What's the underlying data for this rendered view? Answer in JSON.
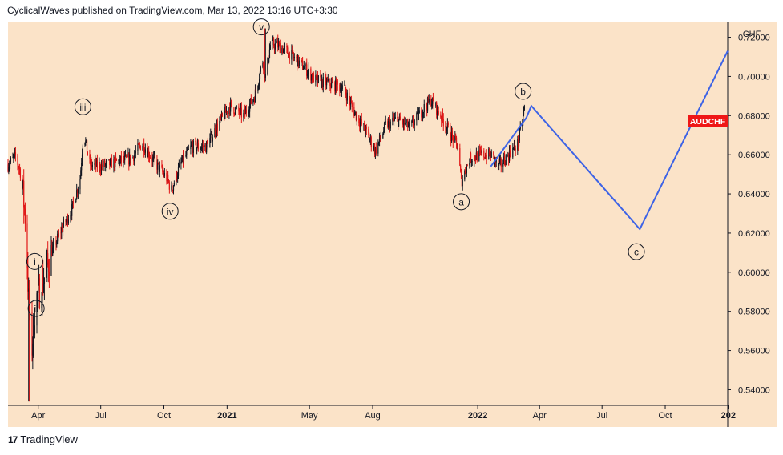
{
  "header": {
    "published": "CyclicalWaves published on TradingView.com, Mar 13, 2022 13:16 UTC+3:30"
  },
  "footer": {
    "logo_text": "TradingView",
    "logo_mark": "17"
  },
  "chart_data": {
    "type": "candlestick",
    "symbol": "AUDCHF",
    "currency": "CHF",
    "last_price_label": "AUDCHF",
    "colors": {
      "background": "#fbe3c8",
      "up": "#131722",
      "down": "#e01616",
      "projection": "#3d63e6",
      "label_bg": "#ef1717"
    },
    "y_axis": {
      "range": [
        0.532,
        0.728
      ],
      "ticks": [
        "0.54000",
        "0.56000",
        "0.58000",
        "0.60000",
        "0.62000",
        "0.64000",
        "0.66000",
        "0.68000",
        "0.70000",
        "0.72000"
      ]
    },
    "x_axis": {
      "range": [
        "2020-02-17",
        "2022-12-31"
      ],
      "ticks": [
        {
          "date": "2020-04-01",
          "label": "Apr",
          "bold": false
        },
        {
          "date": "2020-07-01",
          "label": "Jul",
          "bold": false
        },
        {
          "date": "2020-10-01",
          "label": "Oct",
          "bold": false
        },
        {
          "date": "2021-01-01",
          "label": "2021",
          "bold": true
        },
        {
          "date": "2021-05-01",
          "label": "May",
          "bold": false
        },
        {
          "date": "2021-08-01",
          "label": "Aug",
          "bold": false
        },
        {
          "date": "2022-01-01",
          "label": "2022",
          "bold": true
        },
        {
          "date": "2022-04-01",
          "label": "Apr",
          "bold": false
        },
        {
          "date": "2022-07-01",
          "label": "Jul",
          "bold": false
        },
        {
          "date": "2022-10-01",
          "label": "Oct",
          "bold": false
        },
        {
          "date": "2023-01-01",
          "label": "202",
          "bold": true
        }
      ]
    },
    "price_path": [
      [
        "2020-02-17",
        0.655
      ],
      [
        "2020-02-28",
        0.659
      ],
      [
        "2020-03-07",
        0.65
      ],
      [
        "2020-03-14",
        0.625
      ],
      [
        "2020-03-19",
        0.575
      ],
      [
        "2020-03-23",
        0.562
      ],
      [
        "2020-03-28",
        0.585
      ],
      [
        "2020-04-08",
        0.595
      ],
      [
        "2020-04-20",
        0.61
      ],
      [
        "2020-05-05",
        0.622
      ],
      [
        "2020-05-20",
        0.632
      ],
      [
        "2020-06-01",
        0.648
      ],
      [
        "2020-06-06",
        0.672
      ],
      [
        "2020-06-15",
        0.655
      ],
      [
        "2020-07-01",
        0.654
      ],
      [
        "2020-07-20",
        0.656
      ],
      [
        "2020-08-15",
        0.658
      ],
      [
        "2020-08-30",
        0.666
      ],
      [
        "2020-09-20",
        0.655
      ],
      [
        "2020-10-05",
        0.648
      ],
      [
        "2020-10-12",
        0.642
      ],
      [
        "2020-10-25",
        0.655
      ],
      [
        "2020-11-10",
        0.664
      ],
      [
        "2020-12-01",
        0.664
      ],
      [
        "2020-12-20",
        0.676
      ],
      [
        "2021-01-05",
        0.685
      ],
      [
        "2021-01-25",
        0.68
      ],
      [
        "2021-02-10",
        0.69
      ],
      [
        "2021-02-22",
        0.708
      ],
      [
        "2021-02-26",
        0.7
      ],
      [
        "2021-03-05",
        0.716
      ],
      [
        "2021-03-15",
        0.716
      ],
      [
        "2021-04-01",
        0.712
      ],
      [
        "2021-04-25",
        0.704
      ],
      [
        "2021-05-10",
        0.698
      ],
      [
        "2021-06-01",
        0.696
      ],
      [
        "2021-06-20",
        0.694
      ],
      [
        "2021-07-05",
        0.682
      ],
      [
        "2021-07-25",
        0.67
      ],
      [
        "2021-08-05",
        0.662
      ],
      [
        "2021-08-20",
        0.675
      ],
      [
        "2021-09-05",
        0.678
      ],
      [
        "2021-09-25",
        0.674
      ],
      [
        "2021-10-15",
        0.684
      ],
      [
        "2021-10-25",
        0.688
      ],
      [
        "2021-11-05",
        0.682
      ],
      [
        "2021-11-20",
        0.672
      ],
      [
        "2021-12-03",
        0.664
      ],
      [
        "2021-12-08",
        0.646
      ],
      [
        "2021-12-20",
        0.658
      ],
      [
        "2022-01-05",
        0.66
      ],
      [
        "2022-01-20",
        0.66
      ],
      [
        "2022-02-01",
        0.654
      ],
      [
        "2022-02-15",
        0.66
      ],
      [
        "2022-03-01",
        0.666
      ],
      [
        "2022-03-10",
        0.684
      ]
    ],
    "projection": [
      {
        "date": "2022-01-20",
        "y": 0.654
      },
      {
        "date": "2022-03-13",
        "y": 0.679
      },
      {
        "date": "2022-03-20",
        "y": 0.685
      },
      {
        "date": "2022-08-25",
        "y": 0.622
      },
      {
        "date": "2022-12-31",
        "y": 0.713
      }
    ],
    "wave_labels": [
      {
        "label": "i",
        "date": "2020-03-27",
        "y": 0.6055
      },
      {
        "label": "ii",
        "date": "2020-03-29",
        "y": 0.5815
      },
      {
        "label": "iii",
        "date": "2020-06-05",
        "y": 0.6845
      },
      {
        "label": "iv",
        "date": "2020-10-10",
        "y": 0.6311
      },
      {
        "label": "v",
        "date": "2021-02-20",
        "y": 0.7253
      },
      {
        "label": "a",
        "date": "2021-12-08",
        "y": 0.636
      },
      {
        "label": "b",
        "date": "2022-03-08",
        "y": 0.6924
      },
      {
        "label": "c",
        "date": "2022-08-20",
        "y": 0.6105
      }
    ]
  }
}
